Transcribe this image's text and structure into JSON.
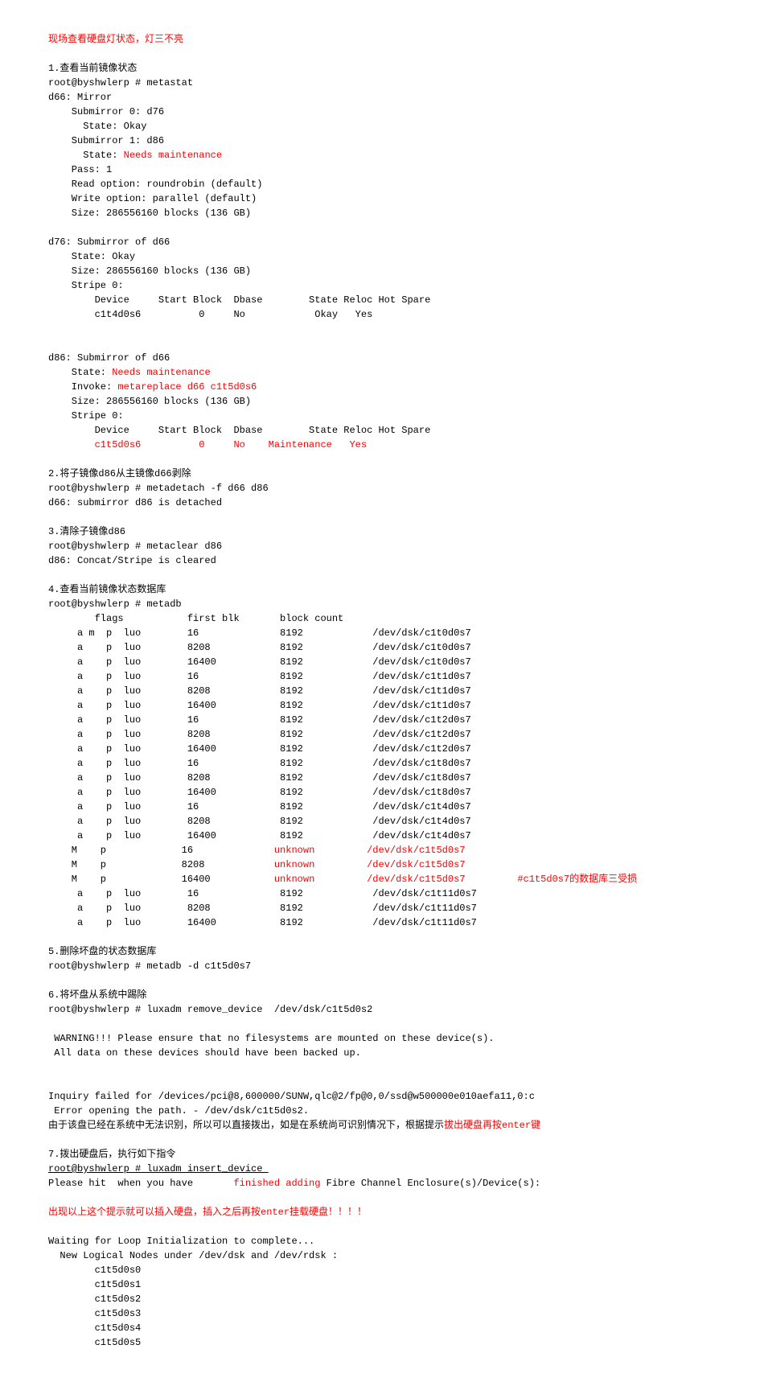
{
  "header_warning": "现场查看硬盘灯状态，灯三不亮",
  "s1": {
    "title": "1.查看当前镜像状态",
    "cmd": "root@byshwlerp # metastat",
    "d66_header": "d66: Mirror",
    "sub0": "    Submirror 0: d76",
    "sub0_state": "      State: Okay",
    "sub1": "    Submirror 1: d86",
    "sub1_state_label": "      State: ",
    "sub1_state_val": "Needs maintenance",
    "pass": "    Pass: 1",
    "read": "    Read option: roundrobin (default)",
    "write": "    Write option: parallel (default)",
    "size": "    Size: 286556160 blocks (136 GB)",
    "d76_header": "d76: Submirror of d66",
    "d76_state": "    State: Okay",
    "d76_size": "    Size: 286556160 blocks (136 GB)",
    "d76_stripe": "    Stripe 0:",
    "d76_dev_hdr": "        Device     Start Block  Dbase        State Reloc Hot Spare",
    "d76_dev_row": "        c1t4d0s6          0     No            Okay   Yes",
    "d86_header": "d86: Submirror of d66",
    "d86_state_label": "    State: ",
    "d86_state_val": "Needs maintenance",
    "d86_invoke_label": "    Invoke: ",
    "d86_invoke_val": "metareplace d66 c1t5d0s6",
    "d86_size": "    Size: 286556160 blocks (136 GB)",
    "d86_stripe": "    Stripe 0:",
    "d86_dev_hdr": "        Device     Start Block  Dbase        State Reloc Hot Spare",
    "d86_dev_row_a": "        ",
    "d86_dev_row_b": "c1t5d0s6          0     No    Maintenance   Yes"
  },
  "s2": {
    "title": "2.将子镜像d86从主镜像d66剥除",
    "cmd": "root@byshwlerp # metadetach -f d66 d86",
    "out": "d66: submirror d86 is detached"
  },
  "s3": {
    "title": "3.清除子镜像d86",
    "cmd": "root@byshwlerp # metaclear d86",
    "out": "d86: Concat/Stripe is cleared"
  },
  "s4": {
    "title": "4.查看当前镜像状态数据库",
    "cmd": "root@byshwlerp # metadb",
    "hdr": "        flags           first blk       block count",
    "rows_normal": [
      "     a m  p  luo        16              8192            /dev/dsk/c1t0d0s7",
      "     a    p  luo        8208            8192            /dev/dsk/c1t0d0s7",
      "     a    p  luo        16400           8192            /dev/dsk/c1t0d0s7",
      "     a    p  luo        16              8192            /dev/dsk/c1t1d0s7",
      "     a    p  luo        8208            8192            /dev/dsk/c1t1d0s7",
      "     a    p  luo        16400           8192            /dev/dsk/c1t1d0s7",
      "     a    p  luo        16              8192            /dev/dsk/c1t2d0s7",
      "     a    p  luo        8208            8192            /dev/dsk/c1t2d0s7",
      "     a    p  luo        16400           8192            /dev/dsk/c1t2d0s7",
      "     a    p  luo        16              8192            /dev/dsk/c1t8d0s7",
      "     a    p  luo        8208            8192            /dev/dsk/c1t8d0s7",
      "     a    p  luo        16400           8192            /dev/dsk/c1t8d0s7",
      "     a    p  luo        16              8192            /dev/dsk/c1t4d0s7",
      "     a    p  luo        8208            8192            /dev/dsk/c1t4d0s7",
      "     a    p  luo        16400           8192            /dev/dsk/c1t4d0s7"
    ],
    "rows_red": [
      {
        "a": "    M    p             16              ",
        "b": "unknown",
        "c": "         ",
        "d": "/dev/dsk/c1t5d0s7"
      },
      {
        "a": "    M    p             8208            ",
        "b": "unknown",
        "c": "         ",
        "d": "/dev/dsk/c1t5d0s7"
      },
      {
        "a": "    M    p             16400           ",
        "b": "unknown",
        "c": "         ",
        "d": "/dev/dsk/c1t5d0s7",
        "e": "         #c1t5d0s7的数据库三受损"
      }
    ],
    "rows_after": [
      "     a    p  luo        16              8192            /dev/dsk/c1t11d0s7",
      "     a    p  luo        8208            8192            /dev/dsk/c1t11d0s7",
      "     a    p  luo        16400           8192            /dev/dsk/c1t11d0s7"
    ]
  },
  "s5": {
    "title": "5.删除坏盘的状态数据库",
    "cmd": "root@byshwlerp # metadb -d c1t5d0s7"
  },
  "s6": {
    "title": "6.将坏盘从系统中踢除",
    "cmd": "root@byshwlerp # luxadm remove_device  /dev/dsk/c1t5d0s2",
    "warn1": " WARNING!!! Please ensure that no filesystems are mounted on these device(s).",
    "warn2": " All data on these devices should have been backed up.",
    "inq": "Inquiry failed for /devices/pci@8,600000/SUNW,qlc@2/fp@0,0/ssd@w500000e010aefa11,0:c",
    "err": " Error opening the path. - /dev/dsk/c1t5d0s2.",
    "note_a": "由于该盘已经在系统中无法识别，所以可以直接拨出，如是在系统尚可识别情况下，根据提示",
    "note_b": "拔出硬盘再按enter键"
  },
  "s7": {
    "title": "7.拨出硬盘后，执行如下指令",
    "cmd_u": "root@byshwlerp # luxadm insert_device ",
    "hit_a": "Please hit  when you have       ",
    "hit_b": "finished adding",
    "hit_c": " Fibre Channel Enclosure(s)/Device(s):",
    "tip": "出现以上这个提示就可以插入硬盘，插入之后再按enter挂载硬盘！！！！",
    "wait": "Waiting for Loop Initialization to complete...",
    "new_ln": "  New Logical Nodes under /dev/dsk and /dev/rdsk :",
    "nodes": [
      "        c1t5d0s0",
      "        c1t5d0s1",
      "        c1t5d0s2",
      "        c1t5d0s3",
      "        c1t5d0s4",
      "        c1t5d0s5"
    ]
  }
}
